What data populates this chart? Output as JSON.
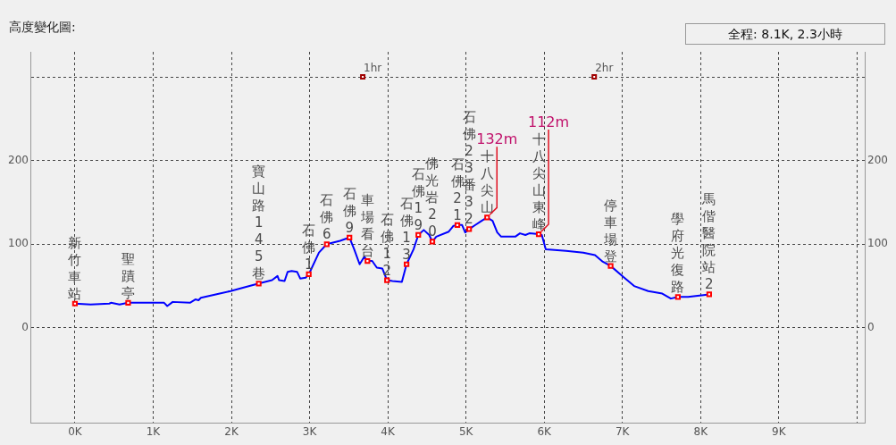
{
  "chart_data": {
    "type": "line",
    "title": "高度變化圖:",
    "annotations": [
      "全程: 8.1K, 2.3小時",
      {
        "text": "1hr",
        "x": 3.68,
        "y": 300
      },
      {
        "text": "2hr",
        "x": 6.64,
        "y": 300
      },
      {
        "text": "132m",
        "x": 5.27,
        "y": 132
      },
      {
        "text": "112m",
        "x": 5.93,
        "y": 112
      }
    ],
    "series": [
      {
        "color": "#0000ff",
        "marker": "none",
        "x": [
          0,
          0.2,
          0.44,
          0.46,
          0.57,
          0.68,
          0.93,
          1.14,
          1.18,
          1.25,
          1.47,
          1.54,
          1.58,
          1.61,
          1.8,
          1.99,
          2.19,
          2.35,
          2.52,
          2.59,
          2.61,
          2.68,
          2.72,
          2.77,
          2.84,
          2.88,
          2.95,
          2.99,
          3.12,
          3.22,
          3.39,
          3.51,
          3.57,
          3.64,
          3.7,
          3.74,
          3.8,
          3.86,
          3.93,
          3.99,
          4.06,
          4.18,
          4.24,
          4.33,
          4.39,
          4.46,
          4.53,
          4.57,
          4.62,
          4.78,
          4.84,
          4.89,
          4.95,
          4.99,
          5.04,
          5.12,
          5.2,
          5.27,
          5.34,
          5.4,
          5.45,
          5.63,
          5.69,
          5.76,
          5.81,
          5.93,
          5.97,
          6.02,
          6.28,
          6.5,
          6.65,
          6.75,
          6.85,
          7.01,
          7.15,
          7.33,
          7.51,
          7.62,
          7.71,
          7.84,
          8.11
        ],
        "values": [
          29,
          28,
          29,
          30,
          28,
          30,
          30,
          30,
          26,
          31,
          30,
          34,
          33,
          36,
          40,
          44,
          49,
          53,
          57,
          62,
          57,
          56,
          67,
          68,
          67,
          59,
          60,
          64,
          90,
          100,
          104,
          108,
          94,
          76,
          85,
          80,
          80,
          72,
          71,
          57,
          56,
          55,
          76,
          94,
          111,
          117,
          111,
          103,
          109,
          115,
          122,
          123,
          123,
          114,
          118,
          123,
          128,
          132,
          128,
          114,
          109,
          109,
          113,
          111,
          113,
          112,
          111,
          94,
          92,
          90,
          87,
          79,
          74,
          61,
          50,
          44,
          41,
          35,
          37,
          37,
          40
        ]
      },
      {
        "type": "scatter",
        "color": "#ff0000",
        "marker": "square",
        "x": [
          0,
          0.68,
          2.35,
          2.99,
          3.22,
          3.51,
          3.74,
          3.99,
          4.24,
          4.39,
          4.57,
          4.89,
          5.04,
          5.27,
          5.93,
          6.85,
          7.71,
          8.11
        ],
        "values": [
          29,
          30,
          53,
          64,
          100,
          108,
          80,
          57,
          76,
          111,
          103,
          123,
          118,
          132,
          112,
          74,
          37,
          40
        ],
        "value_labels": [
          "新竹車站",
          "聖蹟亭",
          "寶山路145巷",
          "石佛1",
          "石佛6",
          "石佛9",
          "車場看台",
          "石佛12",
          "石佛13",
          "石佛19",
          "佛光岩20",
          "石佛21",
          "石佛23番32",
          "十八尖山",
          "十八尖山東峰",
          "停車場登",
          "學府光復路",
          "馬偕醫院站2"
        ]
      }
    ],
    "xlim": [
      -0.56,
      10.1
    ],
    "xticks": [
      {
        "value": 0,
        "label": "0K"
      },
      {
        "value": 1,
        "label": "1K"
      },
      {
        "value": 2,
        "label": "2K"
      },
      {
        "value": 3,
        "label": "3K"
      },
      {
        "value": 4,
        "label": "4K"
      },
      {
        "value": 5,
        "label": "5K"
      },
      {
        "value": 6,
        "label": "6K"
      },
      {
        "value": 7,
        "label": "7K"
      },
      {
        "value": 8,
        "label": "8K"
      },
      {
        "value": 9,
        "label": "9K"
      },
      {
        "value": 10,
        "label": null
      }
    ],
    "ylim": [
      -114,
      330
    ],
    "yticks": [
      0,
      100,
      200,
      {
        "value": 300,
        "label": null
      }
    ],
    "y2lim": [
      -114,
      330
    ],
    "y2ticks": [
      0,
      100,
      200
    ],
    "grid": true,
    "legend": false
  }
}
